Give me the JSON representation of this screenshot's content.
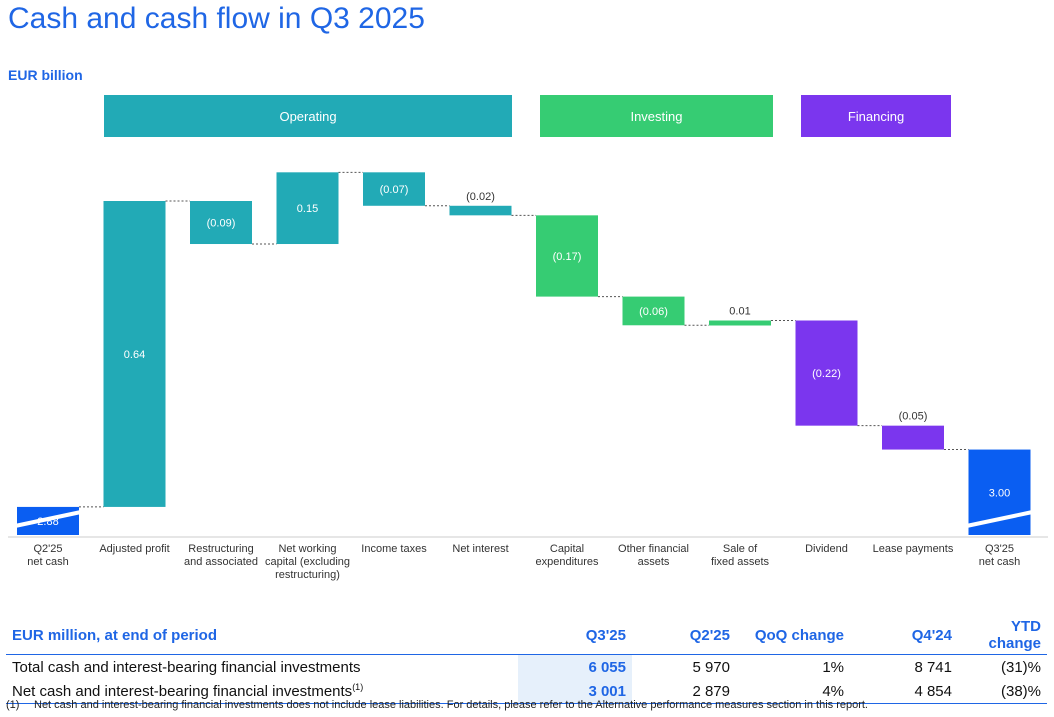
{
  "title": "Cash and cash flow in Q3 2025",
  "unit_label": "EUR billion",
  "segments": [
    {
      "label": "Operating",
      "color": "#22aab6"
    },
    {
      "label": "Investing",
      "color": "#36cc73"
    },
    {
      "label": "Financing",
      "color": "#7b36ee"
    }
  ],
  "colors": {
    "total": "#0a5ef2",
    "operating": "#22aab6",
    "investing": "#36cc73",
    "financing": "#7b36ee",
    "accent": "#1f66e5"
  },
  "chart_data": {
    "type": "bar",
    "subtype": "waterfall",
    "title": "Cash and cash flow in Q3 2025",
    "ylabel": "EUR billion",
    "categories": [
      "Q2'25 net cash",
      "Adjusted profit",
      "Restructuring and associated",
      "Net working capital (excluding restructuring)",
      "Income taxes",
      "Net interest",
      "Capital expenditures",
      "Other financial assets",
      "Sale of fixed assets",
      "Dividend",
      "Lease payments",
      "Q3'25 net cash"
    ],
    "values": [
      2.88,
      0.64,
      -0.09,
      0.15,
      -0.07,
      -0.02,
      -0.17,
      -0.06,
      0.01,
      -0.22,
      -0.05,
      3.0
    ],
    "labels": [
      "2.88",
      "0.64",
      "(0.09)",
      "0.15",
      "(0.07)",
      "(0.02)",
      "(0.17)",
      "(0.06)",
      "0.01",
      "(0.22)",
      "(0.05)",
      "3.00"
    ],
    "kinds": [
      "total",
      "operating",
      "operating",
      "operating",
      "operating",
      "operating",
      "investing",
      "investing",
      "investing",
      "financing",
      "financing",
      "total"
    ],
    "x_labels": [
      [
        "Q2'25",
        "net cash"
      ],
      [
        "Adjusted profit"
      ],
      [
        "Restructuring",
        "and associated"
      ],
      [
        "Net working",
        "capital (excluding",
        "restructuring)"
      ],
      [
        "Income taxes"
      ],
      [
        "Net interest"
      ],
      [
        "Capital",
        "expenditures"
      ],
      [
        "Other financial",
        "assets"
      ],
      [
        "Sale of",
        "fixed assets"
      ],
      [
        "Dividend"
      ],
      [
        "Lease payments"
      ],
      [
        "Q3'25",
        "net cash"
      ]
    ],
    "axis_break": true
  },
  "table": {
    "headers": [
      "EUR million, at end of period",
      "Q3'25",
      "Q2'25",
      "QoQ change",
      "Q4'24",
      "YTD change"
    ],
    "rows": [
      {
        "label": "Total cash and interest-bearing financial investments",
        "sup": "",
        "cells": [
          "6 055",
          "5 970",
          "1%",
          "8 741",
          "(31)%"
        ]
      },
      {
        "label": "Net cash and interest-bearing financial investments",
        "sup": "(1)",
        "cells": [
          "3 001",
          "2 879",
          "4%",
          "4 854",
          "(38)%"
        ]
      }
    ]
  },
  "footnote": {
    "marker": "(1)",
    "text": "Net cash and interest-bearing financial investments does not include lease liabilities. For details, please refer to the Alternative performance measures section in this report."
  }
}
